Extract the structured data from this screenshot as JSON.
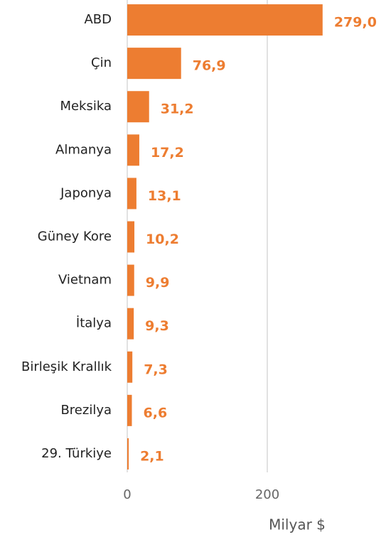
{
  "chart_data": {
    "type": "bar",
    "orientation": "horizontal",
    "x_label": "Milyar $",
    "categories": [
      "ABD",
      "Çin",
      "Meksika",
      "Almanya",
      "Japonya",
      "Güney Kore",
      "Vietnam",
      "İtalya",
      "Birleşik Krallık",
      "Brezilya",
      "29. Türkiye"
    ],
    "values": [
      279.0,
      76.9,
      31.2,
      17.2,
      13.1,
      10.2,
      9.9,
      9.3,
      7.3,
      6.6,
      2.1
    ],
    "value_labels": [
      "279,0",
      "76,9",
      "31,2",
      "17,2",
      "13,1",
      "10,2",
      "9,9",
      "9,3",
      "7,3",
      "6,6",
      "2,1"
    ],
    "color": "#ED7D31",
    "xlim": [
      0,
      300
    ],
    "xticks": [
      0,
      200
    ],
    "grid": true
  }
}
